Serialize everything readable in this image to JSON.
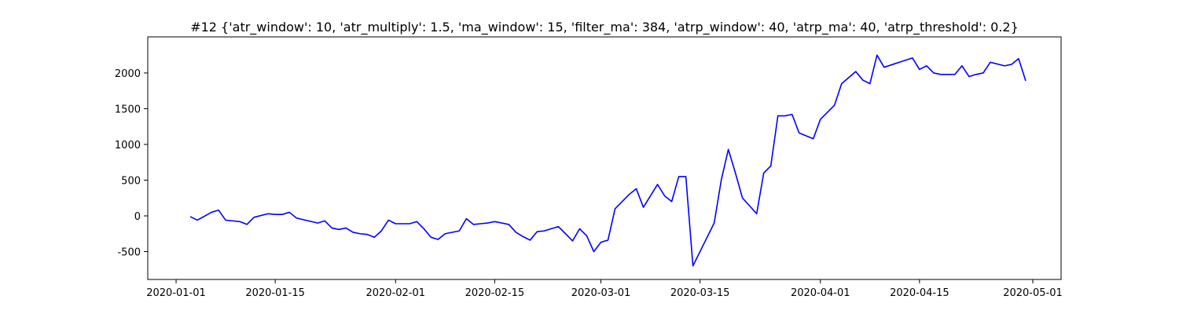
{
  "chart_data": {
    "type": "line",
    "title": "#12 {'atr_window': 10, 'atr_multiply': 1.5, 'ma_window': 15, 'filter_ma': 384, 'atrp_window': 40, 'atrp_ma': 40, 'atrp_threshold': 0.2}",
    "x": [
      "2020-01-03",
      "2020-01-04",
      "2020-01-06",
      "2020-01-07",
      "2020-01-08",
      "2020-01-09",
      "2020-01-10",
      "2020-01-11",
      "2020-01-12",
      "2020-01-14",
      "2020-01-15",
      "2020-01-16",
      "2020-01-17",
      "2020-01-18",
      "2020-01-21",
      "2020-01-22",
      "2020-01-23",
      "2020-01-24",
      "2020-01-25",
      "2020-01-26",
      "2020-01-27",
      "2020-01-28",
      "2020-01-29",
      "2020-01-30",
      "2020-01-31",
      "2020-02-01",
      "2020-02-03",
      "2020-02-04",
      "2020-02-05",
      "2020-02-06",
      "2020-02-07",
      "2020-02-08",
      "2020-02-10",
      "2020-02-11",
      "2020-02-12",
      "2020-02-13",
      "2020-02-14",
      "2020-02-15",
      "2020-02-17",
      "2020-02-18",
      "2020-02-19",
      "2020-02-20",
      "2020-02-21",
      "2020-02-22",
      "2020-02-24",
      "2020-02-25",
      "2020-02-26",
      "2020-02-27",
      "2020-02-28",
      "2020-02-29",
      "2020-03-01",
      "2020-03-02",
      "2020-03-03",
      "2020-03-04",
      "2020-03-05",
      "2020-03-06",
      "2020-03-07",
      "2020-03-09",
      "2020-03-10",
      "2020-03-11",
      "2020-03-12",
      "2020-03-13",
      "2020-03-14",
      "2020-03-17",
      "2020-03-18",
      "2020-03-19",
      "2020-03-20",
      "2020-03-21",
      "2020-03-23",
      "2020-03-24",
      "2020-03-25",
      "2020-03-26",
      "2020-03-27",
      "2020-03-28",
      "2020-03-29",
      "2020-03-31",
      "2020-04-01",
      "2020-04-02",
      "2020-04-03",
      "2020-04-04",
      "2020-04-06",
      "2020-04-07",
      "2020-04-08",
      "2020-04-09",
      "2020-04-10",
      "2020-04-14",
      "2020-04-15",
      "2020-04-16",
      "2020-04-17",
      "2020-04-18",
      "2020-04-20",
      "2020-04-21",
      "2020-04-22",
      "2020-04-23",
      "2020-04-24",
      "2020-04-25",
      "2020-04-27",
      "2020-04-28",
      "2020-04-29",
      "2020-04-30"
    ],
    "series": [
      {
        "color": "blue",
        "values": [
          -10,
          -60,
          50,
          80,
          -60,
          -70,
          -80,
          -120,
          -20,
          30,
          20,
          20,
          50,
          -30,
          -100,
          -70,
          -170,
          -190,
          -170,
          -230,
          -250,
          -260,
          -300,
          -210,
          -60,
          -110,
          -110,
          -80,
          -180,
          -300,
          -330,
          -250,
          -210,
          -40,
          -120,
          -110,
          -100,
          -80,
          -120,
          -230,
          -290,
          -340,
          -220,
          -210,
          -150,
          -250,
          -350,
          -180,
          -280,
          -500,
          -370,
          -340,
          100,
          200,
          300,
          380,
          120,
          440,
          280,
          200,
          550,
          550,
          -700,
          -100,
          500,
          930,
          600,
          250,
          30,
          600,
          700,
          1400,
          1400,
          1420,
          1160,
          1080,
          1350,
          1450,
          1550,
          1850,
          2020,
          1900,
          1850,
          2250,
          2080,
          2210,
          2050,
          2100,
          2000,
          1980,
          1980,
          2100,
          1950,
          1980,
          2000,
          2150,
          2100,
          2120,
          2200,
          1890
        ]
      }
    ],
    "xlim": [
      "2019-12-28",
      "2020-05-05"
    ],
    "xticks": [
      "2020-01-01",
      "2020-01-15",
      "2020-02-01",
      "2020-02-15",
      "2020-03-01",
      "2020-03-15",
      "2020-04-01",
      "2020-04-15",
      "2020-05-01"
    ],
    "ylim": [
      -890,
      2505
    ],
    "yticks": [
      -500,
      0,
      500,
      1000,
      1500,
      2000
    ]
  }
}
